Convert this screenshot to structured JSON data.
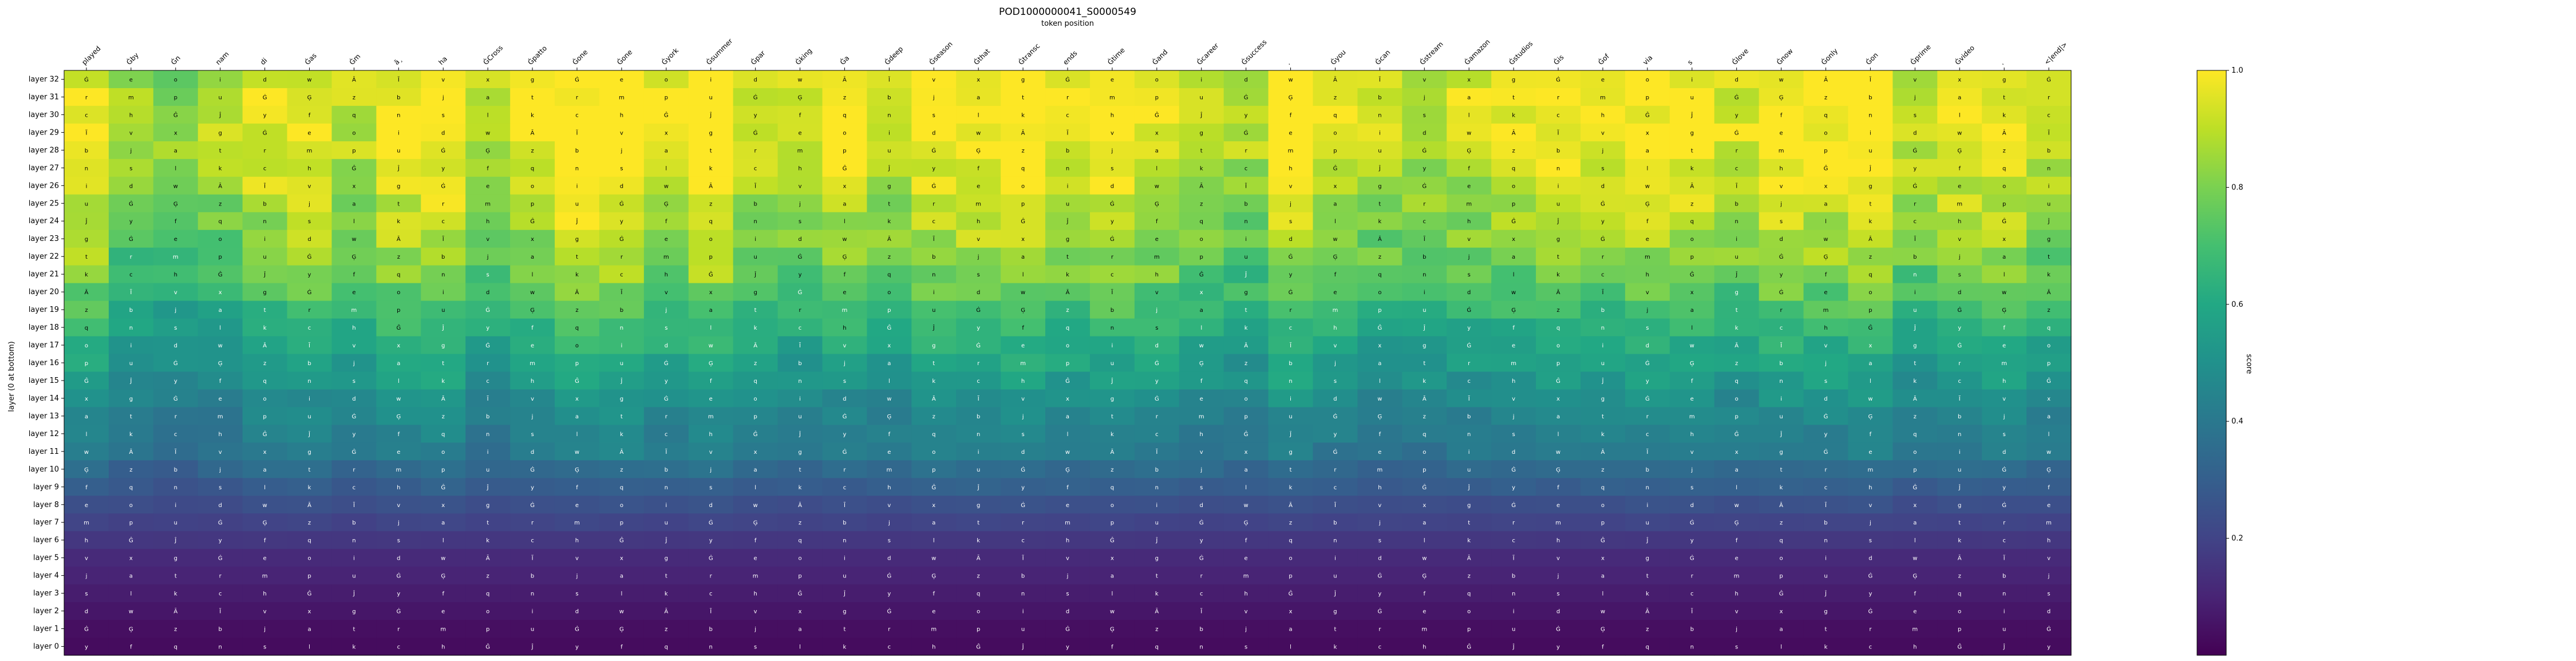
{
  "chart_data": {
    "type": "heatmap",
    "title": "POD1000000041_S0000549",
    "xlabel": "token position",
    "ylabel": "layer (0 at bottom)",
    "colorbar_label": "score",
    "colorbar_ticks": [
      "0.2",
      "0.4",
      "0.6",
      "0.8",
      "1.0"
    ],
    "colorbar_tick_values": [
      0.2,
      0.4,
      0.6,
      0.8,
      1.0
    ],
    "vmin": 0.0,
    "vmax": 1.0,
    "colormap": "viridis",
    "tokens": [
      "played",
      "Ġby",
      "Ġn",
      "nam",
      "di",
      "Ġas",
      "Ġm",
      "ā¸",
      "ha",
      "ĠCross",
      "Ġpatto",
      "Ġone",
      "Ġone",
      "Ġyork",
      "Ġsummer",
      "Ġpar",
      "Ġking",
      "Ġa",
      "Ġdeep",
      "Ġseason",
      "Ġthat",
      "Ġtransc",
      "ends",
      "Ġtime",
      "Ġand",
      "Ġcareer",
      "Ġsuccess",
      ".",
      "Ġyou",
      "Ġcan",
      "Ġstream",
      "Ġamazon",
      "Ġstudios",
      "Ġis",
      "Ġof",
      "via",
      "s",
      "Ġlove",
      "Ġnow",
      "Ġonly",
      "Ġon",
      "Ġprime",
      "Ġvideo",
      ".",
      "<|end|>"
    ],
    "layers": [
      "layer 32",
      "layer 31",
      "layer 30",
      "layer 29",
      "layer 28",
      "layer 27",
      "layer 26",
      "layer 25",
      "layer 24",
      "layer 23",
      "layer 22",
      "layer 21",
      "layer 20",
      "layer 19",
      "layer 18",
      "layer 17",
      "layer 16",
      "layer 15",
      "layer 14",
      "layer 13",
      "layer 12",
      "layer 11",
      "layer 10",
      "layer 9",
      "layer 8",
      "layer 7",
      "layer 6",
      "layer 5",
      "layer 4",
      "layer 3",
      "layer 2",
      "layer 1",
      "layer 0"
    ],
    "cell_glyphs": [
      "Ġ",
      "a",
      "n",
      "e",
      "t",
      "s",
      "o",
      "r",
      "l",
      "i",
      "m",
      "k",
      "d",
      "p",
      "c",
      "w",
      "u",
      "h",
      "Ā",
      "Ġ",
      "Ĝ",
      "Ĩ",
      "Ģ",
      "Ĵ",
      "v",
      "z",
      "y",
      "x",
      "b",
      "f",
      "g",
      "j",
      "q"
    ],
    "layer_base": [
      0.93,
      0.95,
      0.96,
      0.95,
      0.94,
      0.91,
      0.89,
      0.86,
      0.84,
      0.82,
      0.79,
      0.75,
      0.71,
      0.66,
      0.62,
      0.58,
      0.55,
      0.52,
      0.47,
      0.44,
      0.42,
      0.4,
      0.34,
      0.29,
      0.24,
      0.2,
      0.16,
      0.12,
      0.1,
      0.08,
      0.06,
      0.04,
      0.03
    ],
    "token_bias": [
      0.05,
      -0.08,
      -0.12,
      -0.06,
      0.02,
      0.04,
      -0.04,
      0.06,
      0.08,
      -0.05,
      0.02,
      0.1,
      0.12,
      0.03,
      0.11,
      0.0,
      -0.03,
      0.02,
      -0.02,
      0.05,
      0.07,
      0.09,
      0.04,
      0.06,
      0.03,
      -0.02,
      -0.06,
      0.08,
      0.0,
      -0.04,
      -0.05,
      -0.02,
      0.01,
      0.04,
      0.02,
      0.06,
      0.05,
      0.0,
      0.07,
      0.05,
      0.09,
      -0.03,
      0.03,
      0.04,
      -0.02
    ]
  }
}
